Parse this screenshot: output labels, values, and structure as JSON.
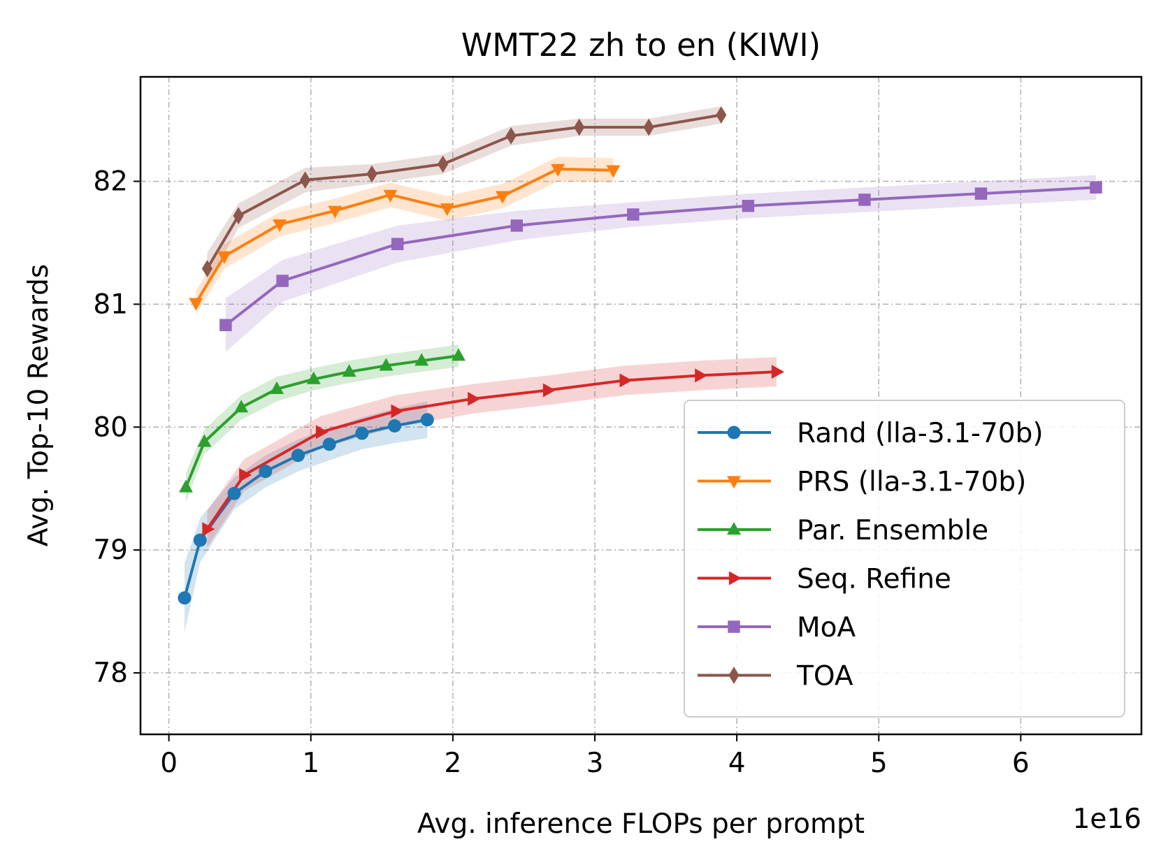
{
  "chart_data": {
    "type": "line",
    "title": "WMT22 zh to en (KIWI)",
    "xlabel": "Avg. inference FLOPs per prompt",
    "ylabel": "Avg. Top-10 Rewards",
    "x_offset_text": "1e16",
    "xlim": [
      -0.2,
      6.85
    ],
    "ylim": [
      77.5,
      82.85
    ],
    "xticks": [
      0,
      1,
      2,
      3,
      4,
      5,
      6
    ],
    "xtick_labels": [
      "0",
      "1",
      "2",
      "3",
      "4",
      "5",
      "6"
    ],
    "yticks": [
      78,
      79,
      80,
      81,
      82
    ],
    "ytick_labels": [
      "78",
      "79",
      "80",
      "81",
      "82"
    ],
    "grid": true,
    "legend_position": "lower-right",
    "series": [
      {
        "name": "Rand (lla-3.1-70b)",
        "color": "#1f77b4",
        "marker": "circle",
        "x": [
          0.11,
          0.22,
          0.46,
          0.68,
          0.91,
          1.13,
          1.36,
          1.59,
          1.82
        ],
        "y": [
          78.61,
          79.08,
          79.46,
          79.64,
          79.77,
          79.86,
          79.95,
          80.01,
          80.06
        ],
        "band": [
          0.28,
          0.18,
          0.13,
          0.13,
          0.13,
          0.13,
          0.13,
          0.14,
          0.15
        ]
      },
      {
        "name": "PRS (lla-3.1-70b)",
        "color": "#ff7f0e",
        "marker": "triangle-down",
        "x": [
          0.19,
          0.39,
          0.78,
          1.17,
          1.56,
          1.96,
          2.35,
          2.74,
          3.13
        ],
        "y": [
          81.01,
          81.39,
          81.65,
          81.76,
          81.89,
          81.78,
          81.88,
          82.1,
          82.09
        ],
        "band": [
          0.1,
          0.1,
          0.1,
          0.1,
          0.1,
          0.1,
          0.1,
          0.1,
          0.1
        ]
      },
      {
        "name": "Par. Ensemble",
        "color": "#2ca02c",
        "marker": "triangle-up",
        "x": [
          0.12,
          0.25,
          0.51,
          0.76,
          1.02,
          1.27,
          1.53,
          1.78,
          2.04
        ],
        "y": [
          79.51,
          79.88,
          80.16,
          80.31,
          80.39,
          80.45,
          80.5,
          80.54,
          80.58
        ],
        "band": [
          0.12,
          0.1,
          0.1,
          0.1,
          0.09,
          0.09,
          0.09,
          0.09,
          0.09
        ]
      },
      {
        "name": "Seq. Refine",
        "color": "#d62728",
        "marker": "triangle-right",
        "x": [
          0.27,
          0.53,
          1.07,
          1.6,
          2.14,
          2.67,
          3.21,
          3.74,
          4.28
        ],
        "y": [
          79.17,
          79.61,
          79.96,
          80.13,
          80.23,
          80.3,
          80.38,
          80.42,
          80.45
        ],
        "band": [
          0.15,
          0.13,
          0.13,
          0.13,
          0.12,
          0.12,
          0.12,
          0.12,
          0.12
        ]
      },
      {
        "name": "MoA",
        "color": "#9467bd",
        "marker": "square",
        "x": [
          0.4,
          0.8,
          1.61,
          2.45,
          3.27,
          4.08,
          4.9,
          5.72,
          6.53
        ],
        "y": [
          80.83,
          81.19,
          81.49,
          81.64,
          81.73,
          81.8,
          81.85,
          81.9,
          81.95
        ],
        "band": [
          0.22,
          0.17,
          0.15,
          0.12,
          0.1,
          0.1,
          0.1,
          0.1,
          0.1
        ]
      },
      {
        "name": "TOA",
        "color": "#8c564b",
        "marker": "diamond",
        "x": [
          0.27,
          0.49,
          0.96,
          1.43,
          1.93,
          2.41,
          2.89,
          3.38,
          3.89
        ],
        "y": [
          81.29,
          81.72,
          82.01,
          82.06,
          82.14,
          82.37,
          82.44,
          82.44,
          82.54
        ],
        "band": [
          0.13,
          0.1,
          0.1,
          0.08,
          0.08,
          0.08,
          0.07,
          0.07,
          0.07
        ]
      }
    ]
  }
}
